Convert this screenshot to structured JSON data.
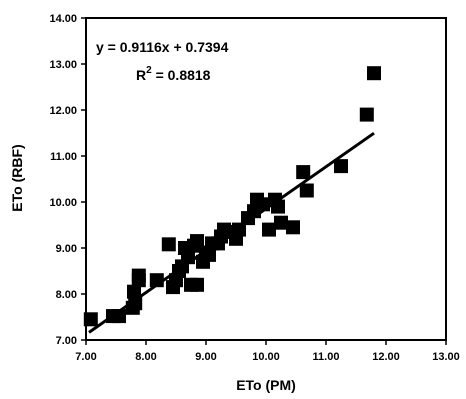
{
  "chart_data": {
    "type": "scatter",
    "xlabel": "ETo (PM)",
    "ylabel": "ETo (RBF)",
    "xlim": [
      7.0,
      13.0
    ],
    "ylim": [
      7.0,
      14.0
    ],
    "x_ticks": [
      "7.00",
      "8.00",
      "9.00",
      "10.00",
      "11.00",
      "12.00",
      "13.00"
    ],
    "y_ticks": [
      "7.00",
      "8.00",
      "9.00",
      "10.00",
      "11.00",
      "12.00",
      "13.00",
      "14.00"
    ],
    "grid": false,
    "legend": "none",
    "annotations": {
      "equation": "y = 0.9116x + 0.7394",
      "r2_label": "R",
      "r2_exp": "2",
      "r2_value": " = 0.8818"
    },
    "trendline": {
      "slope": 0.9116,
      "intercept": 0.7394,
      "x_range": [
        7.05,
        11.8
      ]
    },
    "marker_color": "#000000",
    "points": [
      {
        "x": 7.08,
        "y": 7.45
      },
      {
        "x": 7.45,
        "y": 7.52
      },
      {
        "x": 7.55,
        "y": 7.52
      },
      {
        "x": 7.78,
        "y": 7.7
      },
      {
        "x": 7.82,
        "y": 7.8
      },
      {
        "x": 7.8,
        "y": 8.05
      },
      {
        "x": 7.88,
        "y": 8.3
      },
      {
        "x": 7.88,
        "y": 8.4
      },
      {
        "x": 8.18,
        "y": 8.3
      },
      {
        "x": 8.38,
        "y": 9.08
      },
      {
        "x": 8.45,
        "y": 8.15
      },
      {
        "x": 8.5,
        "y": 8.3
      },
      {
        "x": 8.55,
        "y": 8.5
      },
      {
        "x": 8.6,
        "y": 8.6
      },
      {
        "x": 8.65,
        "y": 9.0
      },
      {
        "x": 8.7,
        "y": 8.8
      },
      {
        "x": 8.75,
        "y": 8.2
      },
      {
        "x": 8.85,
        "y": 8.2
      },
      {
        "x": 8.8,
        "y": 9.05
      },
      {
        "x": 8.85,
        "y": 9.15
      },
      {
        "x": 8.95,
        "y": 8.7
      },
      {
        "x": 9.0,
        "y": 8.9
      },
      {
        "x": 9.05,
        "y": 8.85
      },
      {
        "x": 9.1,
        "y": 9.1
      },
      {
        "x": 9.2,
        "y": 9.1
      },
      {
        "x": 9.25,
        "y": 9.25
      },
      {
        "x": 9.3,
        "y": 9.4
      },
      {
        "x": 9.4,
        "y": 9.35
      },
      {
        "x": 9.5,
        "y": 9.2
      },
      {
        "x": 9.55,
        "y": 9.4
      },
      {
        "x": 9.7,
        "y": 9.65
      },
      {
        "x": 9.8,
        "y": 9.8
      },
      {
        "x": 9.85,
        "y": 10.05
      },
      {
        "x": 9.95,
        "y": 9.95
      },
      {
        "x": 10.05,
        "y": 9.4
      },
      {
        "x": 10.15,
        "y": 10.05
      },
      {
        "x": 10.2,
        "y": 9.9
      },
      {
        "x": 10.25,
        "y": 9.55
      },
      {
        "x": 10.45,
        "y": 9.45
      },
      {
        "x": 10.62,
        "y": 10.65
      },
      {
        "x": 10.68,
        "y": 10.25
      },
      {
        "x": 11.25,
        "y": 10.78
      },
      {
        "x": 11.68,
        "y": 11.9
      },
      {
        "x": 11.8,
        "y": 12.8
      }
    ]
  }
}
